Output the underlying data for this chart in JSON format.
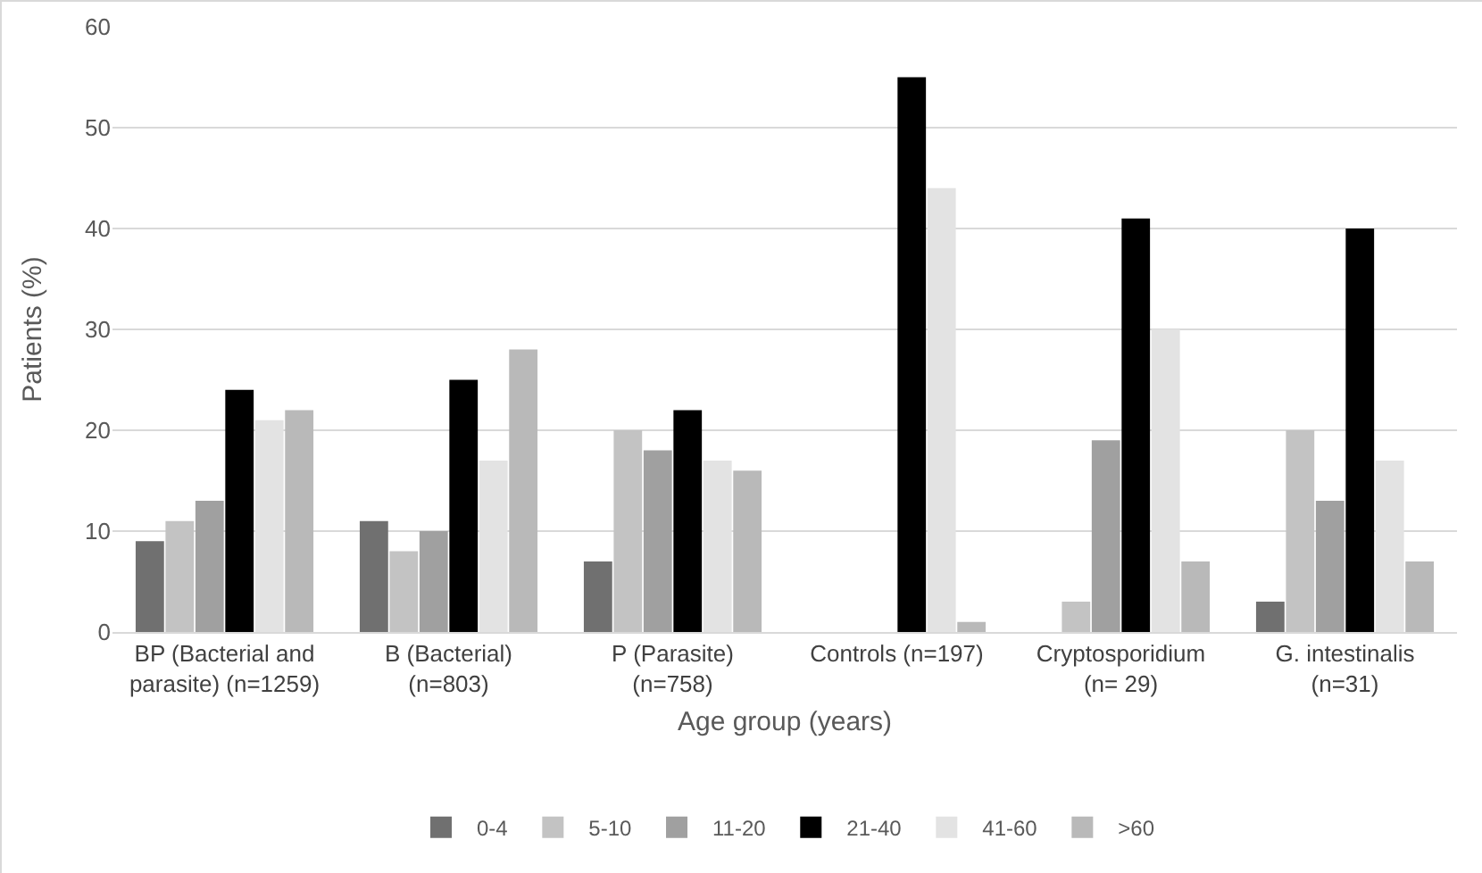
{
  "chart_data": {
    "type": "bar",
    "xlabel": "Age group (years)",
    "ylabel": "Patients (%)",
    "categories": [
      "BP (Bacterial and\nparasite) (n=1259)",
      "B (Bacterial)\n(n=803)",
      "P (Parasite)\n(n=758)",
      "Controls (n=197)",
      "Cryptosporidium\n(n= 29)",
      "G. intestinalis\n(n=31)"
    ],
    "series": [
      {
        "name": "0-4",
        "color": "#707070",
        "values": [
          9,
          11,
          7,
          null,
          null,
          3
        ]
      },
      {
        "name": "5-10",
        "color": "#c3c3c3",
        "values": [
          11,
          8,
          20,
          null,
          3,
          20
        ]
      },
      {
        "name": "11-20",
        "color": "#a0a0a0",
        "values": [
          13,
          10,
          18,
          null,
          19,
          13
        ]
      },
      {
        "name": "21-40",
        "color": "#000000",
        "values": [
          24,
          25,
          22,
          55,
          41,
          40
        ]
      },
      {
        "name": "41-60",
        "color": "#e3e3e3",
        "values": [
          21,
          17,
          17,
          44,
          30,
          17
        ]
      },
      {
        "name": ">60",
        "color": "#b9b9b9",
        "values": [
          22,
          28,
          16,
          1,
          7,
          7
        ]
      }
    ],
    "ylim": [
      0,
      60
    ],
    "yticks": [
      0,
      10,
      20,
      30,
      40,
      50,
      60
    ],
    "grid": "y",
    "legend": "bottom"
  }
}
